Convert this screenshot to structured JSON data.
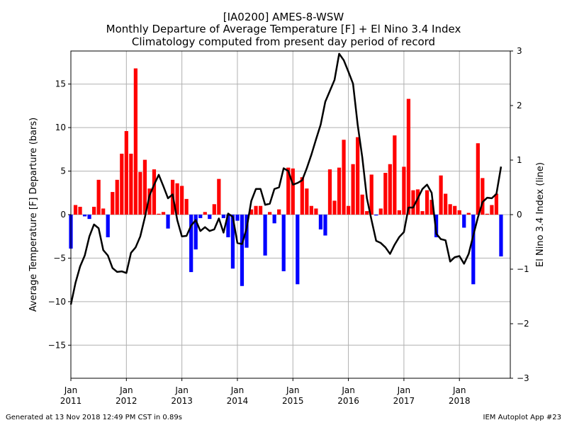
{
  "header": {
    "line1": "[IA0200] AMES-8-WSW",
    "line2": "Monthly Departure of Average Temperature [F] + El Nino 3.4 Index",
    "line3": "Climatology computed from present day period of record"
  },
  "footer": {
    "left": "Generated at 13 Nov 2018 12:49 PM CST in 0.89s",
    "right": "IEM Autoplot App #23"
  },
  "chart_data": {
    "type": "bar",
    "title": "[IA0200] AMES-8-WSW",
    "ylabel": "Average Temperature [F] Departure (bars)",
    "y2label": "El Nino 3.4 Index (line)",
    "ylim": [
      -18.8,
      18.8
    ],
    "y2lim": [
      -3,
      3
    ],
    "yticks": [
      -15,
      -10,
      -5,
      0,
      5,
      10,
      15
    ],
    "y2ticks": [
      -3,
      -2,
      -1,
      0,
      1,
      2,
      3
    ],
    "x_start": "2011-01",
    "x_end": "2018-12",
    "xticks": [
      {
        "month": "2011-01",
        "line1": "Jan",
        "line2": "2011"
      },
      {
        "month": "2012-01",
        "line1": "Jan",
        "line2": "2012"
      },
      {
        "month": "2013-01",
        "line1": "Jan",
        "line2": "2013"
      },
      {
        "month": "2014-01",
        "line1": "Jan",
        "line2": "2014"
      },
      {
        "month": "2015-01",
        "line1": "Jan",
        "line2": "2015"
      },
      {
        "month": "2016-01",
        "line1": "Jan",
        "line2": "2016"
      },
      {
        "month": "2017-01",
        "line1": "Jan",
        "line2": "2017"
      },
      {
        "month": "2018-01",
        "line1": "Jan",
        "line2": "2018"
      }
    ],
    "grid": true,
    "positive_color": "#ff0000",
    "negative_color": "#0000ff",
    "line_color": "#000000",
    "series": [
      {
        "type": "bar",
        "start": "2011-01",
        "values": [
          -3.9,
          1.1,
          0.9,
          -0.2,
          -0.5,
          0.9,
          4.0,
          0.7,
          -2.6,
          2.6,
          4.0,
          7.0,
          9.6,
          7.0,
          16.8,
          4.9,
          6.3,
          3.0,
          5.2,
          0.1,
          0.3,
          -1.6,
          4.0,
          3.6,
          3.3,
          1.8,
          -6.6,
          -4.0,
          -0.4,
          0.3,
          -0.5,
          1.2,
          4.1,
          -0.4,
          -2.6,
          -6.2,
          -0.7,
          -8.2,
          -3.8,
          0.6,
          1.0,
          1.0,
          -4.7,
          0.3,
          -1.0,
          0.6,
          -6.5,
          5.4,
          5.3,
          -8.0,
          4.3,
          3.0,
          1.0,
          0.7,
          -1.7,
          -2.4,
          5.2,
          1.6,
          5.4,
          8.6,
          1.0,
          5.8,
          8.9,
          2.3,
          0.4,
          4.6,
          -0.1,
          0.7,
          4.8,
          5.8,
          9.1,
          0.5,
          5.5,
          13.3,
          2.8,
          2.9,
          0.4,
          2.8,
          1.7,
          -2.6,
          4.5,
          2.4,
          1.2,
          1.0,
          0.5,
          -1.5,
          0.2,
          -8.0,
          8.2,
          4.2,
          0.1,
          1.1,
          2.4,
          -4.8
        ]
      },
      {
        "type": "line",
        "name": "El Nino 3.4 Index",
        "start": "2011-01",
        "values": [
          -1.65,
          -1.25,
          -0.95,
          -0.75,
          -0.4,
          -0.18,
          -0.25,
          -0.65,
          -0.75,
          -0.98,
          -1.05,
          -1.04,
          -1.07,
          -0.7,
          -0.6,
          -0.4,
          -0.05,
          0.35,
          0.55,
          0.73,
          0.52,
          0.3,
          0.37,
          -0.1,
          -0.4,
          -0.39,
          -0.2,
          -0.1,
          -0.3,
          -0.23,
          -0.3,
          -0.27,
          -0.07,
          -0.33,
          0.02,
          -0.04,
          -0.52,
          -0.54,
          -0.25,
          0.25,
          0.47,
          0.47,
          0.18,
          0.2,
          0.47,
          0.5,
          0.85,
          0.8,
          0.55,
          0.58,
          0.63,
          0.85,
          1.1,
          1.38,
          1.65,
          2.07,
          2.27,
          2.47,
          2.95,
          2.83,
          2.62,
          2.4,
          1.65,
          1.05,
          0.3,
          -0.1,
          -0.48,
          -0.52,
          -0.6,
          -0.72,
          -0.55,
          -0.41,
          -0.32,
          0.13,
          0.13,
          0.3,
          0.47,
          0.55,
          0.4,
          -0.35,
          -0.45,
          -0.47,
          -0.86,
          -0.78,
          -0.76,
          -0.9,
          -0.72,
          -0.38,
          -0.05,
          0.23,
          0.31,
          0.3,
          0.38,
          0.88
        ]
      }
    ]
  }
}
